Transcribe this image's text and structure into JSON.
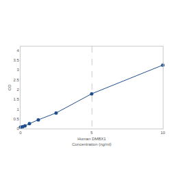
{
  "chart_data": {
    "type": "line",
    "marker": "circle",
    "x_label": [
      "Human DMBX1",
      "Concentration (ng/ml)"
    ],
    "y_label": "OD",
    "x": [
      0,
      0.156,
      0.312,
      0.625,
      1.25,
      2.5,
      5,
      10
    ],
    "values": [
      0.08,
      0.1,
      0.14,
      0.25,
      0.45,
      0.8,
      1.78,
      3.25
    ],
    "color": "#1f4e8c",
    "xlim": [
      0,
      10
    ],
    "xticks": [
      0,
      5,
      10
    ],
    "ylim": [
      0,
      4.2
    ],
    "yticks": [
      0,
      0.5,
      1,
      1.5,
      2,
      2.5,
      3,
      3.5,
      4
    ],
    "grid": true
  }
}
